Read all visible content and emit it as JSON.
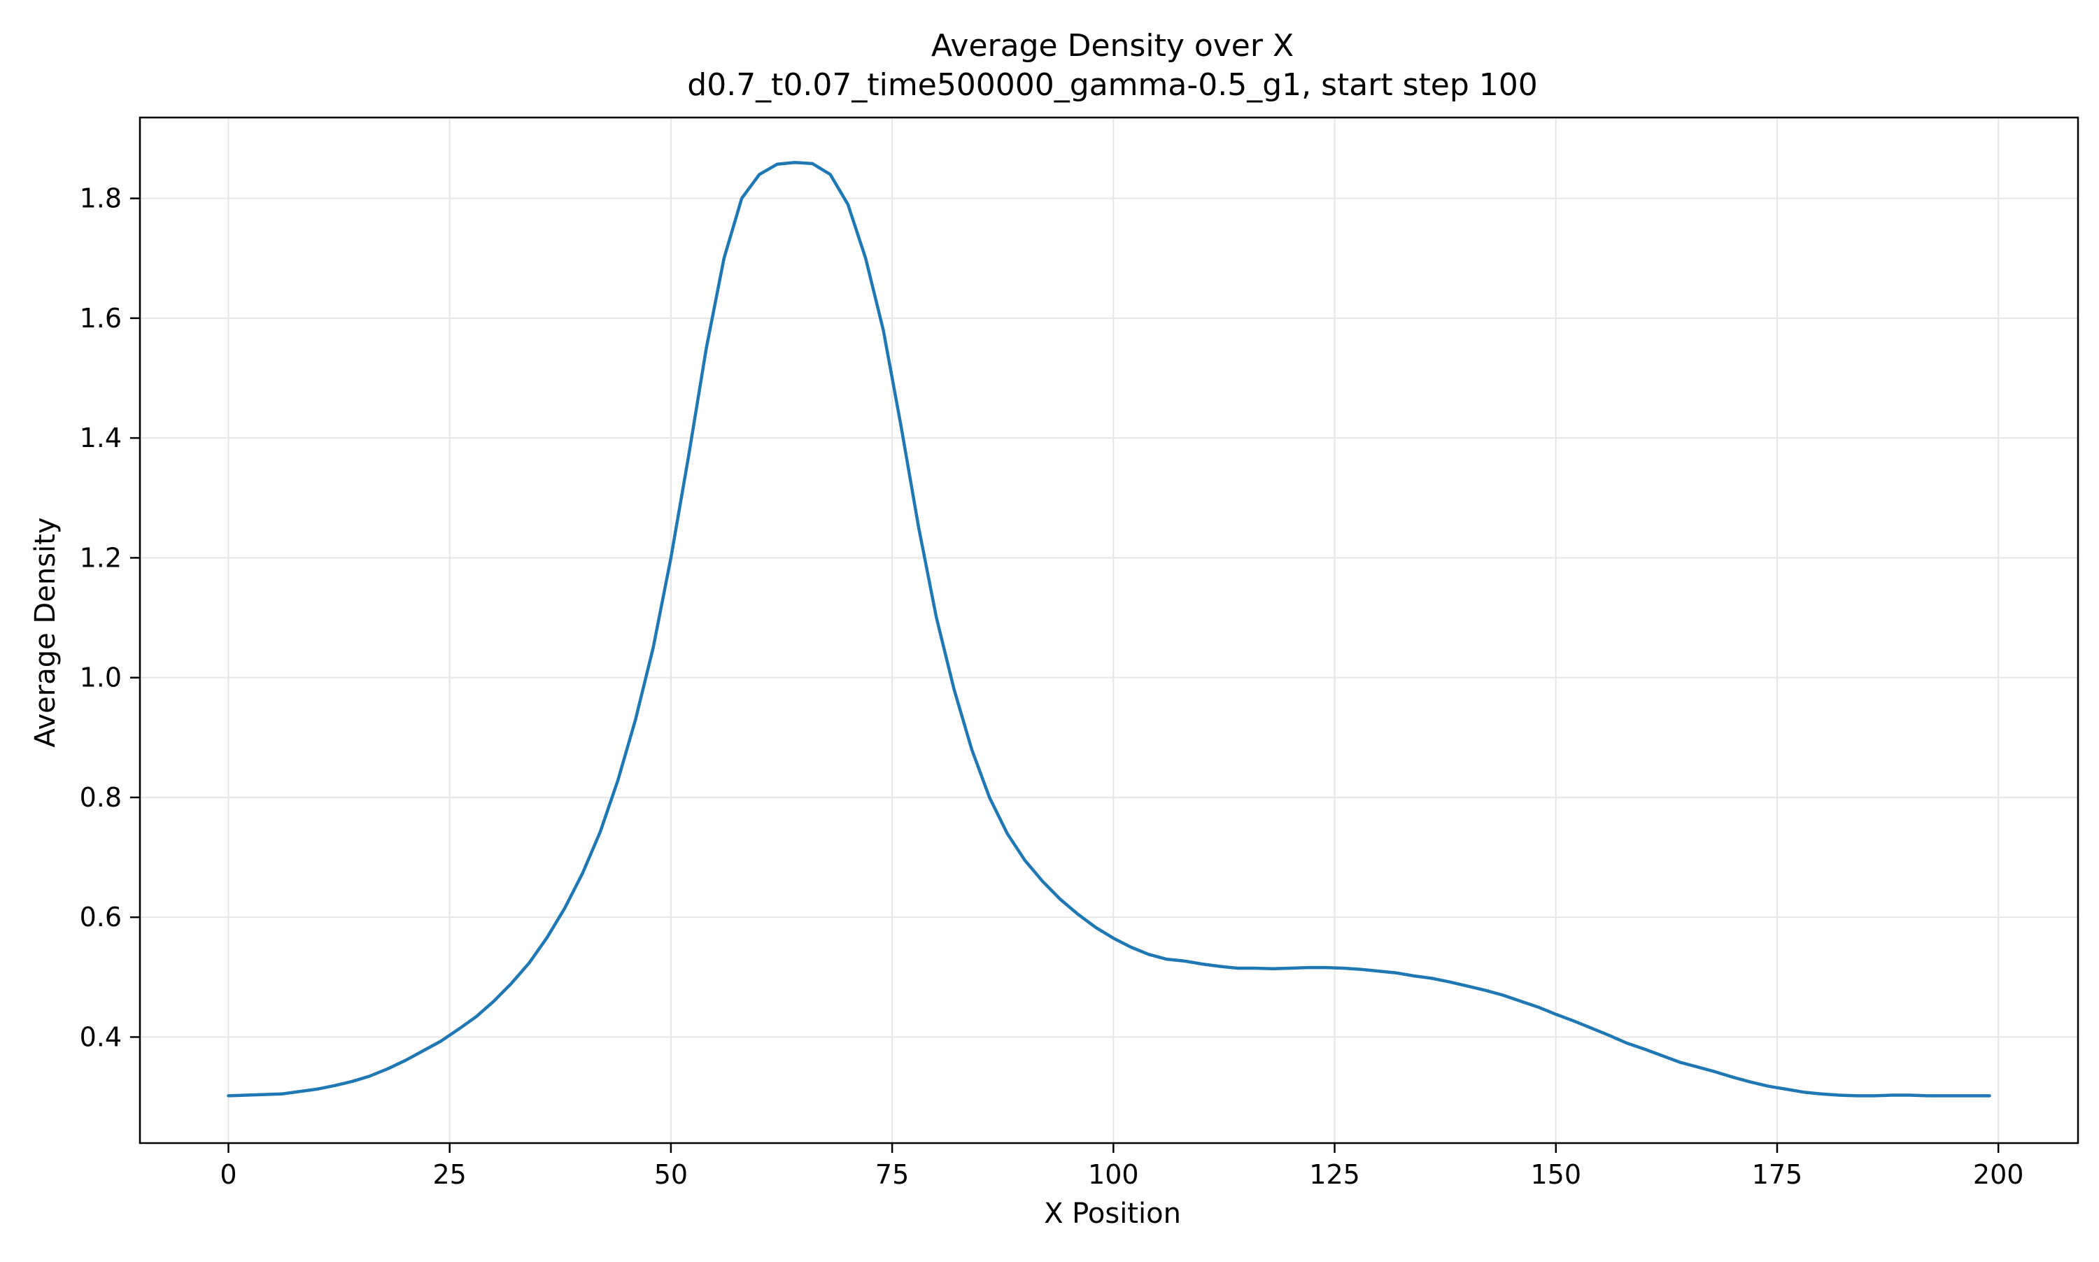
{
  "chart_data": {
    "type": "line",
    "title": "Average Density over X",
    "subtitle": "d0.7_t0.07_time500000_gamma-0.5_g1, start step 100",
    "xlabel": "X Position",
    "ylabel": "Average Density",
    "xlim": [
      -10,
      209
    ],
    "ylim": [
      0.223,
      1.935
    ],
    "xticks": [
      0,
      25,
      50,
      75,
      100,
      125,
      150,
      175,
      200
    ],
    "xtick_labels": [
      "0",
      "25",
      "50",
      "75",
      "100",
      "125",
      "150",
      "175",
      "200"
    ],
    "yticks": [
      0.4,
      0.6,
      0.8,
      1.0,
      1.2,
      1.4,
      1.6,
      1.8
    ],
    "ytick_labels": [
      "0.4",
      "0.6",
      "0.8",
      "1.0",
      "1.2",
      "1.4",
      "1.6",
      "1.8"
    ],
    "grid": true,
    "legend": "none",
    "colors": {
      "line": "#1f77b4",
      "grid": "#e6e6e6",
      "axes": "#000000"
    },
    "series": [
      {
        "x": [
          0,
          2,
          4,
          6,
          8,
          10,
          12,
          14,
          16,
          18,
          20,
          22,
          24,
          26,
          28,
          30,
          32,
          34,
          36,
          38,
          40,
          42,
          44,
          46,
          48,
          50,
          52,
          54,
          56,
          58,
          60,
          62,
          64,
          66,
          68,
          70,
          72,
          74,
          76,
          78,
          80,
          82,
          84,
          86,
          88,
          90,
          92,
          94,
          96,
          98,
          100,
          102,
          104,
          106,
          108,
          110,
          112,
          114,
          116,
          118,
          120,
          122,
          124,
          126,
          128,
          130,
          132,
          134,
          136,
          138,
          140,
          142,
          144,
          146,
          148,
          150,
          152,
          154,
          156,
          158,
          160,
          162,
          164,
          166,
          168,
          170,
          172,
          174,
          176,
          178,
          180,
          182,
          184,
          186,
          188,
          190,
          192,
          194,
          196,
          198,
          199
        ],
        "y": [
          0.302,
          0.303,
          0.304,
          0.305,
          0.309,
          0.313,
          0.319,
          0.326,
          0.335,
          0.347,
          0.361,
          0.377,
          0.393,
          0.413,
          0.434,
          0.46,
          0.49,
          0.524,
          0.566,
          0.615,
          0.673,
          0.742,
          0.828,
          0.93,
          1.05,
          1.2,
          1.37,
          1.55,
          1.7,
          1.8,
          1.84,
          1.857,
          1.86,
          1.858,
          1.84,
          1.79,
          1.7,
          1.58,
          1.42,
          1.25,
          1.1,
          0.98,
          0.88,
          0.8,
          0.74,
          0.695,
          0.66,
          0.63,
          0.605,
          0.583,
          0.565,
          0.55,
          0.538,
          0.53,
          0.527,
          0.522,
          0.518,
          0.515,
          0.515,
          0.514,
          0.515,
          0.516,
          0.516,
          0.515,
          0.513,
          0.51,
          0.507,
          0.502,
          0.498,
          0.492,
          0.485,
          0.478,
          0.47,
          0.46,
          0.45,
          0.438,
          0.427,
          0.415,
          0.403,
          0.39,
          0.38,
          0.369,
          0.358,
          0.35,
          0.342,
          0.333,
          0.325,
          0.318,
          0.313,
          0.308,
          0.305,
          0.303,
          0.302,
          0.302,
          0.303,
          0.303,
          0.302,
          0.302,
          0.302,
          0.302,
          0.302
        ]
      }
    ]
  }
}
